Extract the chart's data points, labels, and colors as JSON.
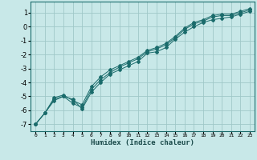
{
  "xlabel": "Humidex (Indice chaleur)",
  "ylabel": "",
  "background_color": "#c8e8e8",
  "grid_color": "#a0c8c8",
  "line_color": "#1a6b6b",
  "xlim": [
    -0.5,
    23.5
  ],
  "ylim": [
    -7.5,
    1.8
  ],
  "yticks": [
    1,
    0,
    -1,
    -2,
    -3,
    -4,
    -5,
    -6,
    -7
  ],
  "xticks": [
    0,
    1,
    2,
    3,
    4,
    5,
    6,
    7,
    8,
    9,
    10,
    11,
    12,
    13,
    14,
    15,
    16,
    17,
    18,
    19,
    20,
    21,
    22,
    23
  ],
  "line1_x": [
    0,
    1,
    2,
    3,
    4,
    5,
    6,
    7,
    8,
    9,
    10,
    11,
    12,
    13,
    14,
    15,
    16,
    17,
    18,
    19,
    20,
    21,
    22,
    23
  ],
  "line1_y": [
    -7.0,
    -6.2,
    -5.3,
    -5.0,
    -5.2,
    -5.9,
    -4.7,
    -4.0,
    -3.4,
    -3.1,
    -2.8,
    -2.5,
    -1.9,
    -1.8,
    -1.5,
    -0.9,
    -0.4,
    0.0,
    0.3,
    0.5,
    0.6,
    0.7,
    0.9,
    1.1
  ],
  "line2_x": [
    0,
    1,
    2,
    3,
    4,
    5,
    6,
    7,
    8,
    9,
    10,
    11,
    12,
    13,
    14,
    15,
    16,
    17,
    18,
    19,
    20,
    21,
    22,
    23
  ],
  "line2_y": [
    -7.0,
    -6.2,
    -5.2,
    -5.0,
    -5.5,
    -5.8,
    -4.5,
    -3.8,
    -3.3,
    -2.9,
    -2.6,
    -2.3,
    -1.8,
    -1.6,
    -1.3,
    -0.8,
    -0.2,
    0.2,
    0.4,
    0.7,
    0.8,
    0.8,
    1.0,
    1.2
  ],
  "line3_x": [
    0,
    1,
    2,
    3,
    4,
    5,
    6,
    7,
    8,
    9,
    10,
    11,
    12,
    13,
    14,
    15,
    16,
    17,
    18,
    19,
    20,
    21,
    22,
    23
  ],
  "line3_y": [
    -7.0,
    -6.2,
    -5.1,
    -4.9,
    -5.3,
    -5.6,
    -4.3,
    -3.6,
    -3.1,
    -2.8,
    -2.5,
    -2.2,
    -1.7,
    -1.5,
    -1.2,
    -0.7,
    -0.1,
    0.3,
    0.5,
    0.8,
    0.9,
    0.9,
    1.1,
    1.3
  ]
}
